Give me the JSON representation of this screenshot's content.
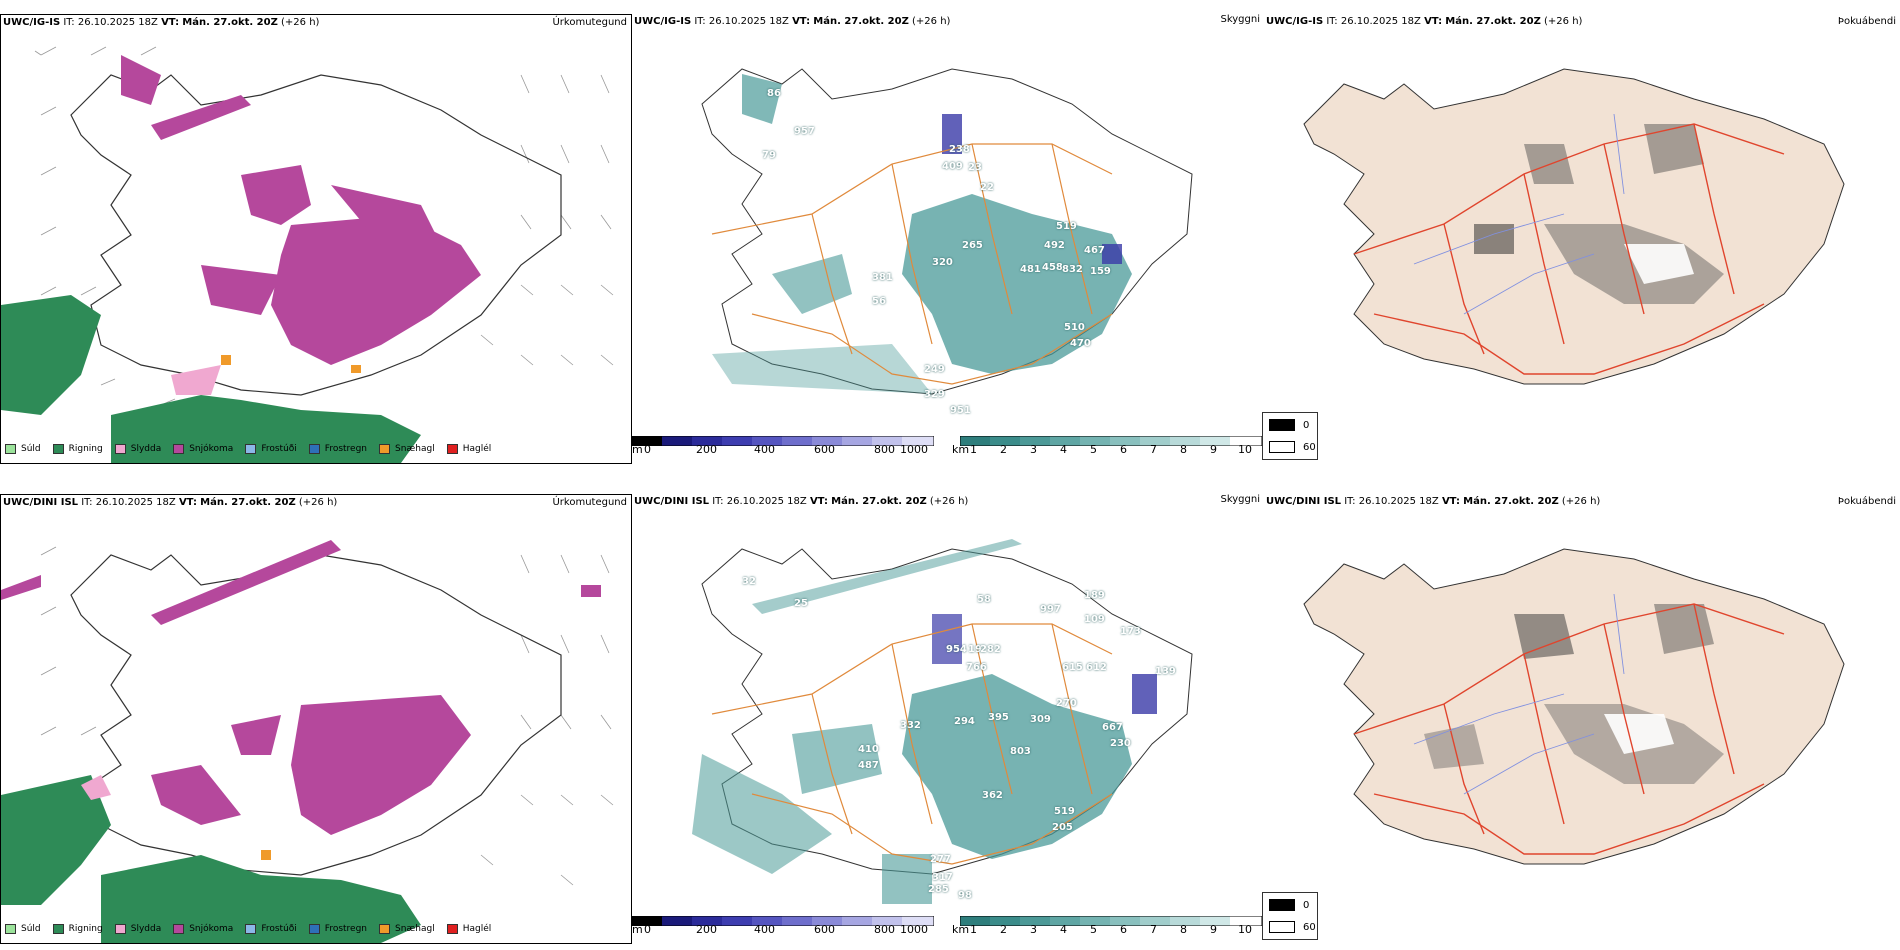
{
  "colors": {
    "sudd": "#9be39b",
    "rigning": "#2e8b57",
    "slydda": "#f0a8d0",
    "snjokoma": "#b5489c",
    "frostudi": "#8bb8e8",
    "frostregn": "#2e70b8",
    "snaehagl": "#f09a2a",
    "haglel": "#e02020",
    "teal": "#4a9a98",
    "blue": "#3a3aa8",
    "roads": "#e08a3c",
    "land": "#f2e2d4",
    "redroads": "#e0452d"
  },
  "legend_precip": [
    {
      "label": "Súld",
      "color": "#9be39b"
    },
    {
      "label": "Rigning",
      "color": "#2e8b57"
    },
    {
      "label": "Slydda",
      "color": "#f0a8d0"
    },
    {
      "label": "Snjókoma",
      "color": "#b5489c"
    },
    {
      "label": "Frostúði",
      "color": "#8bb8e8"
    },
    {
      "label": "Frostregn",
      "color": "#2e70b8"
    },
    {
      "label": "Snæhagl",
      "color": "#f09a2a"
    },
    {
      "label": "Haglél",
      "color": "#e02020"
    }
  ],
  "cbar_m": {
    "unit": "m",
    "ticks": [
      "0",
      "200",
      "400",
      "600",
      "800",
      "1000"
    ]
  },
  "cbar_km": {
    "unit": "km",
    "ticks": [
      "1",
      "2",
      "3",
      "4",
      "5",
      "6",
      "7",
      "8",
      "9",
      "10"
    ]
  },
  "fog_legend": {
    "black_label": "0",
    "white_label": "60"
  },
  "rows": [
    {
      "model": "UWC/IG-IS",
      "it_label": "IT:",
      "it_value": "26.10.2025 18Z",
      "vt_label": "VT:",
      "vt_value": "Mán. 27.okt. 20Z",
      "lead": "(+26 h)",
      "titles": {
        "precip": "Úrkomutegund",
        "vis": "Skyggni",
        "fog": "Þokuábendi"
      },
      "labels": [
        "86",
        "957",
        "79",
        "238",
        "409",
        "23",
        "22",
        "265",
        "320",
        "519",
        "492",
        "481",
        "458",
        "832",
        "467",
        "159",
        "381",
        "56",
        "510",
        "470",
        "249",
        "329",
        "951"
      ]
    },
    {
      "model": "UWC/DINI ISL",
      "it_label": "IT:",
      "it_value": "26.10.2025 18Z",
      "vt_label": "VT:",
      "vt_value": "Mán. 27.okt. 20Z",
      "lead": "(+26 h)",
      "titles": {
        "precip": "Úrkomutegund",
        "vis": "Skyggni",
        "fog": "Þokuábendi"
      },
      "labels": [
        "32",
        "25",
        "58",
        "189",
        "997",
        "109",
        "173",
        "954",
        "19",
        "282",
        "766",
        "615",
        "612",
        "139",
        "270",
        "309",
        "667",
        "230",
        "395",
        "294",
        "332",
        "410",
        "487",
        "803",
        "362",
        "519",
        "205",
        "277",
        "317",
        "285",
        "98"
      ]
    }
  ]
}
